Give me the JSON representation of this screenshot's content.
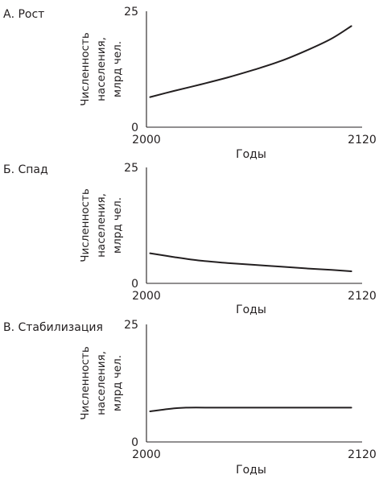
{
  "chart_data": [
    {
      "type": "line",
      "title": "А. Рост",
      "xlabel": "Годы",
      "ylabel": [
        "Численность",
        "населения,",
        "млрд чел."
      ],
      "xlim": [
        2000,
        2120
      ],
      "ylim": [
        0,
        25
      ],
      "xticks": [
        "2000",
        "2120"
      ],
      "yticks": [
        "0",
        "25"
      ],
      "grid": false,
      "series": [
        {
          "x": [
            2002,
            2015,
            2030,
            2045,
            2060,
            2075,
            2090,
            2103,
            2114
          ],
          "y": [
            6.5,
            7.8,
            9.2,
            10.7,
            12.4,
            14.3,
            16.7,
            19.1,
            21.8
          ]
        }
      ]
    },
    {
      "type": "line",
      "title": "Б. Спад",
      "xlabel": "Годы",
      "ylabel": [
        "Численность",
        "населения,",
        "млрд чел."
      ],
      "xlim": [
        2000,
        2120
      ],
      "ylim": [
        0,
        25
      ],
      "xticks": [
        "2000",
        "2120"
      ],
      "yticks": [
        "0",
        "25"
      ],
      "grid": false,
      "series": [
        {
          "x": [
            2002,
            2015,
            2030,
            2045,
            2060,
            2075,
            2090,
            2103,
            2114
          ],
          "y": [
            6.5,
            5.7,
            4.9,
            4.4,
            4.0,
            3.6,
            3.2,
            2.9,
            2.6
          ]
        }
      ]
    },
    {
      "type": "line",
      "title": "В. Стабилизация",
      "xlabel": "Годы",
      "ylabel": [
        "Численность",
        "населения,",
        "млрд чел."
      ],
      "xlim": [
        2000,
        2120
      ],
      "ylim": [
        0,
        25
      ],
      "xticks": [
        "2000",
        "2120"
      ],
      "yticks": [
        "0",
        "25"
      ],
      "grid": false,
      "series": [
        {
          "x": [
            2002,
            2012,
            2022,
            2040,
            2060,
            2080,
            2100,
            2114
          ],
          "y": [
            6.5,
            7.0,
            7.3,
            7.3,
            7.3,
            7.3,
            7.3,
            7.3
          ]
        }
      ]
    }
  ]
}
